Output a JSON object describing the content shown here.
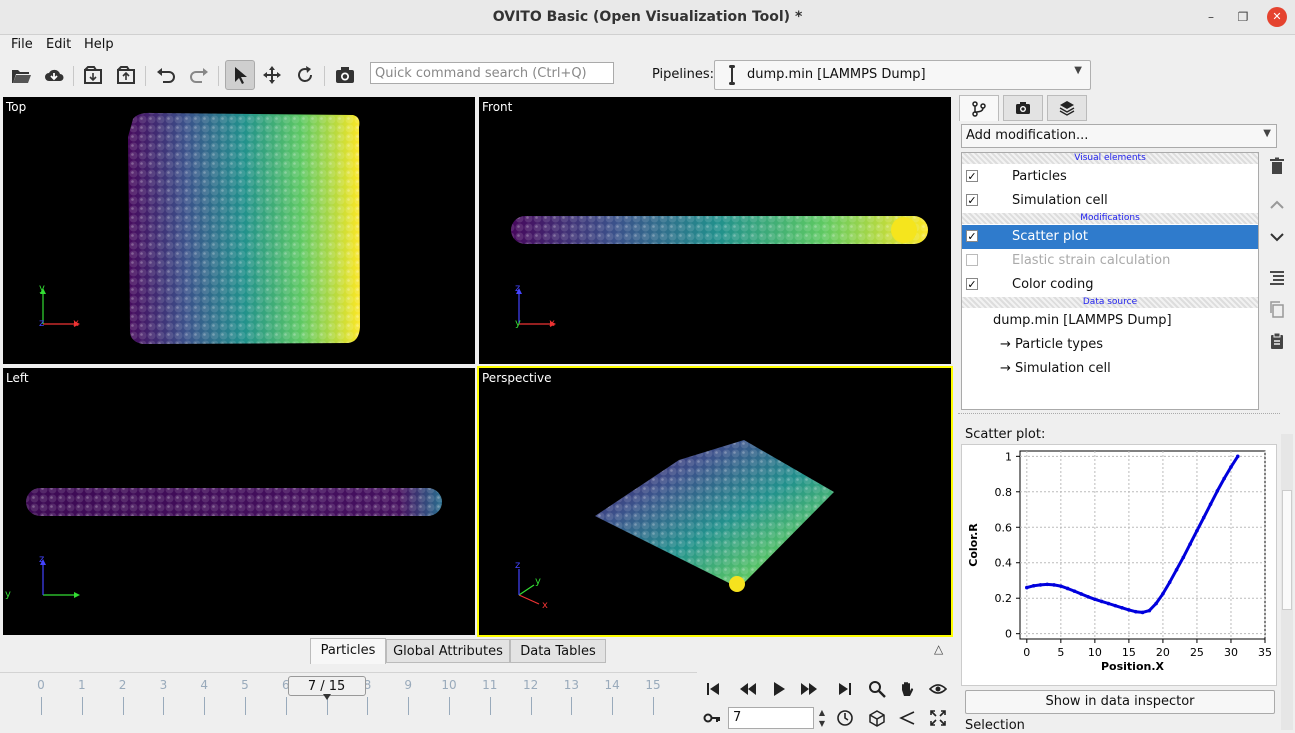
{
  "window": {
    "title": "OVITO Basic (Open Visualization Tool) *"
  },
  "menu": {
    "file": "File",
    "edit": "Edit",
    "help": "Help"
  },
  "toolbar": {
    "search_placeholder": "Quick command search (Ctrl+Q)",
    "pipelines_label": "Pipelines:",
    "pipeline_selected": "dump.min [LAMMPS Dump]"
  },
  "viewports": {
    "top": "Top",
    "front": "Front",
    "left": "Left",
    "perspective": "Perspective",
    "axis_x": "x",
    "axis_y": "y",
    "axis_z": "z"
  },
  "bottom_tabs": [
    "Particles",
    "Global Attributes",
    "Data Tables"
  ],
  "timeline": {
    "ticks": [
      "0",
      "1",
      "2",
      "3",
      "4",
      "5",
      "6",
      "7",
      "8",
      "9",
      "10",
      "11",
      "12",
      "13",
      "14",
      "15"
    ],
    "current_frame_label": "7 / 15",
    "current_frame": 7,
    "last_frame": 15,
    "frame_spinner_value": "7"
  },
  "command_panel": {
    "add_modification": "Add modification...",
    "sections": {
      "visual": "Visual elements",
      "modifications": "Modifications",
      "source": "Data source"
    },
    "visual_elements": [
      {
        "label": "Particles",
        "checked": true
      },
      {
        "label": "Simulation cell",
        "checked": true
      }
    ],
    "modifications": [
      {
        "label": "Scatter plot",
        "checked": true,
        "selected": true
      },
      {
        "label": "Elastic strain calculation",
        "checked": false,
        "selected": false
      },
      {
        "label": "Color coding",
        "checked": true,
        "selected": false
      }
    ],
    "data_source": {
      "name": "dump.min [LAMMPS Dump]",
      "children": [
        "→ Particle types",
        "→ Simulation cell"
      ]
    },
    "scatter_caption": "Scatter plot:",
    "show_in_inspector": "Show in data inspector",
    "selection_label": "Selection"
  },
  "colors": {
    "selection": "#2f7bcc",
    "active_viewport": "#ffff00",
    "plot_line": "#0000dd"
  },
  "chart_data": {
    "type": "scatter",
    "xlabel": "Position.X",
    "ylabel": "Color.R",
    "xlim": [
      -1,
      35
    ],
    "ylim": [
      -0.03,
      1.03
    ],
    "xticks": [
      0,
      5,
      10,
      15,
      20,
      25,
      30,
      35
    ],
    "yticks": [
      0,
      0.2,
      0.4,
      0.6,
      0.8,
      1
    ],
    "ytick_labels": [
      "0",
      "0.2",
      "0.4",
      "0.6",
      "0.8",
      "1"
    ],
    "grid": true,
    "series": [
      {
        "x": [
          0,
          1,
          2,
          3,
          4,
          5,
          6,
          7,
          8,
          9,
          10,
          11,
          12,
          13,
          14,
          15,
          16,
          17,
          18,
          19,
          20,
          21,
          22,
          23,
          24,
          25,
          26,
          27,
          28,
          29,
          30,
          31
        ],
        "y": [
          0.26,
          0.27,
          0.275,
          0.278,
          0.275,
          0.268,
          0.255,
          0.24,
          0.224,
          0.208,
          0.194,
          0.182,
          0.17,
          0.158,
          0.146,
          0.134,
          0.124,
          0.12,
          0.13,
          0.17,
          0.225,
          0.29,
          0.36,
          0.43,
          0.505,
          0.58,
          0.655,
          0.73,
          0.805,
          0.875,
          0.94,
          1.0
        ]
      }
    ]
  }
}
